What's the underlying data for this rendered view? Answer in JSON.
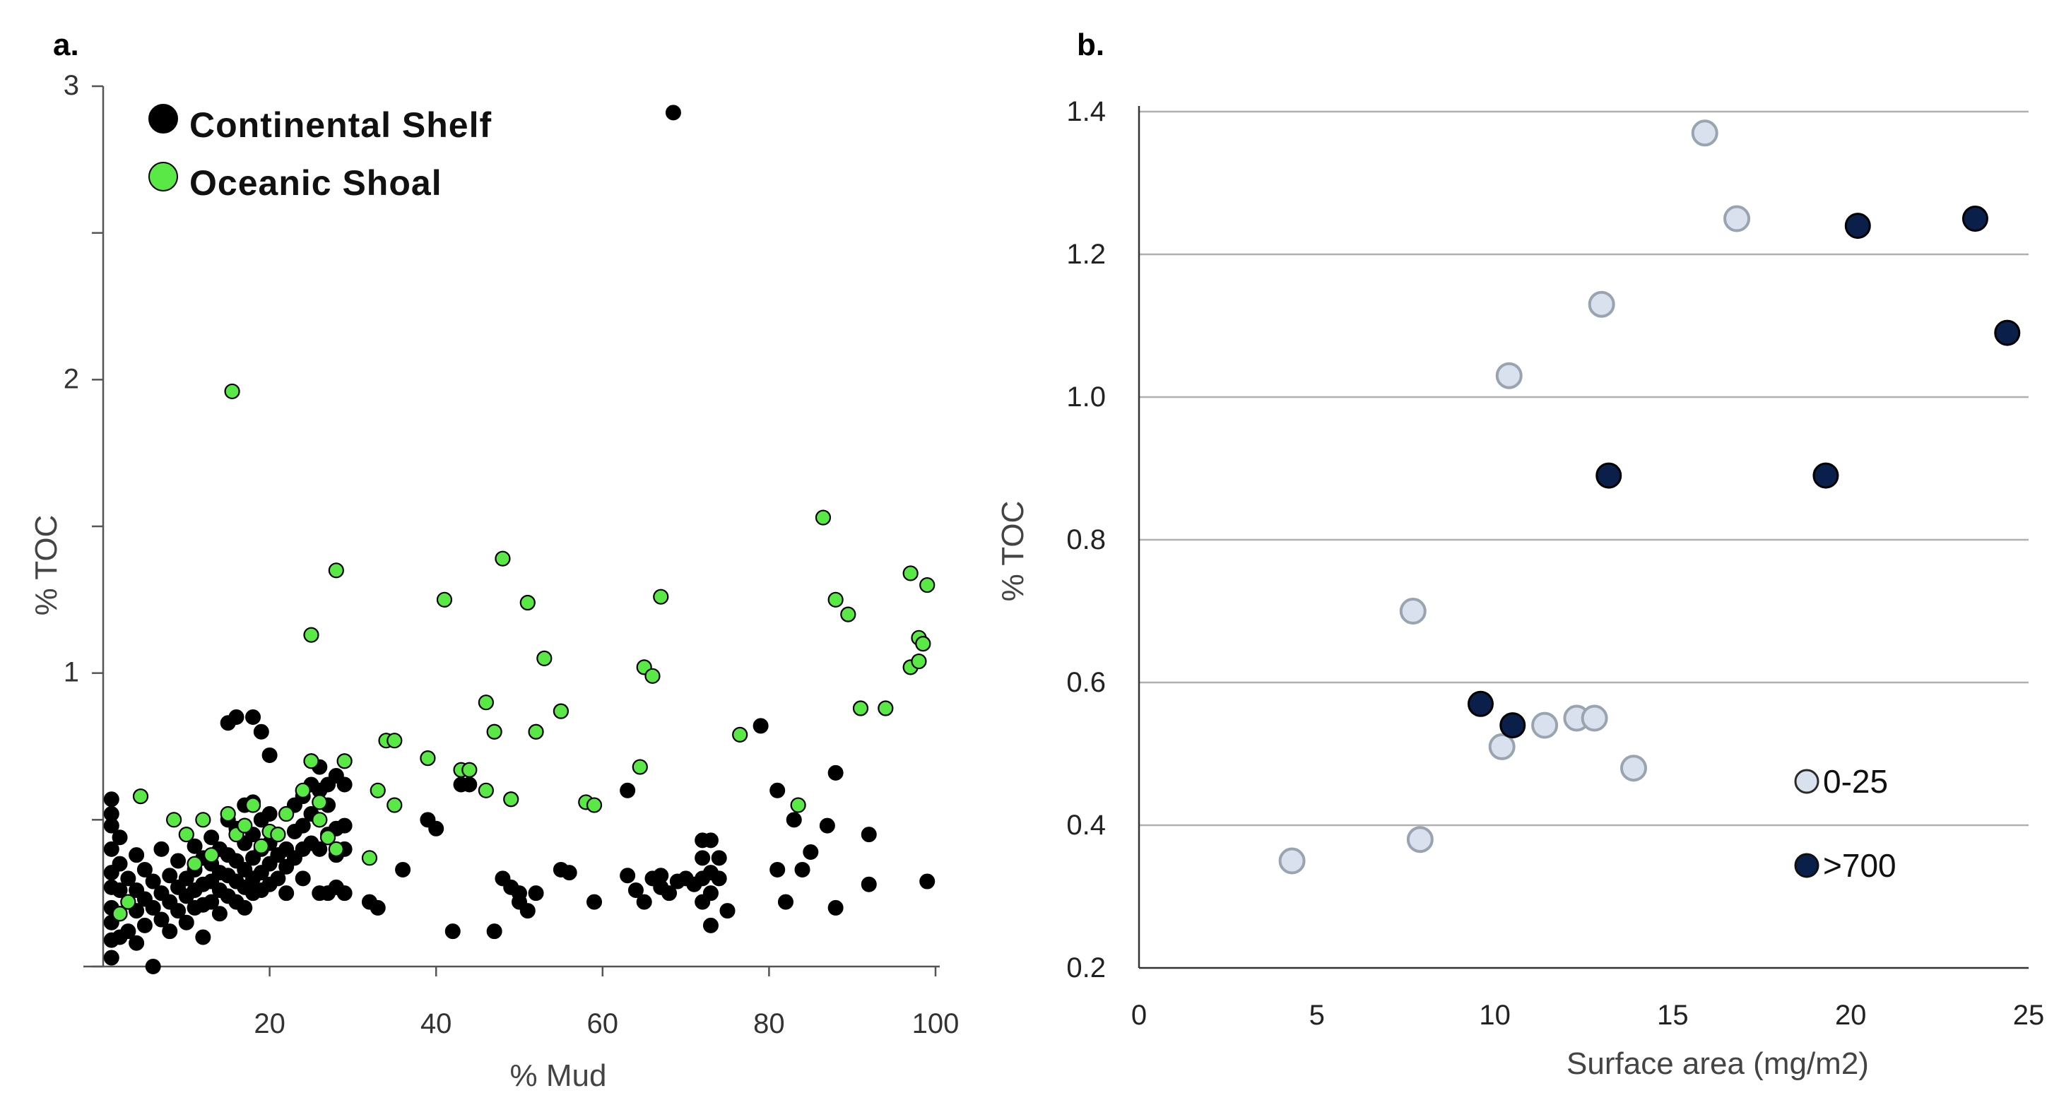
{
  "chart_data": [
    {
      "panel": "a.",
      "type": "scatter",
      "title": "",
      "xlabel": "% Mud",
      "ylabel": "% TOC",
      "xlim": [
        0,
        100
      ],
      "ylim": [
        0,
        3
      ],
      "x_ticks": [
        "20",
        "40",
        "60",
        "80",
        "100"
      ],
      "y_ticks": [
        "1",
        "2",
        "3"
      ],
      "grid": false,
      "legend_position": "top-left",
      "series": [
        {
          "name": "Continental Shelf",
          "color": "#000000",
          "points": [
            [
              68.5,
              2.91
            ],
            [
              1,
              0.57
            ],
            [
              1,
              0.52
            ],
            [
              1,
              0.48
            ],
            [
              1,
              0.4
            ],
            [
              1,
              0.32
            ],
            [
              1,
              0.27
            ],
            [
              1,
              0.2
            ],
            [
              1,
              0.15
            ],
            [
              1,
              0.09
            ],
            [
              1,
              0.03
            ],
            [
              2,
              0.44
            ],
            [
              2,
              0.35
            ],
            [
              2,
              0.26
            ],
            [
              2,
              0.18
            ],
            [
              2,
              0.1
            ],
            [
              3,
              0.3
            ],
            [
              3,
              0.22
            ],
            [
              3,
              0.12
            ],
            [
              4,
              0.38
            ],
            [
              4,
              0.26
            ],
            [
              4,
              0.19
            ],
            [
              4,
              0.08
            ],
            [
              5,
              0.33
            ],
            [
              5,
              0.23
            ],
            [
              5,
              0.14
            ],
            [
              6,
              0.29
            ],
            [
              6,
              0.2
            ],
            [
              6,
              0.0
            ],
            [
              7,
              0.4
            ],
            [
              7,
              0.25
            ],
            [
              7,
              0.16
            ],
            [
              8,
              0.31
            ],
            [
              8,
              0.22
            ],
            [
              8,
              0.12
            ],
            [
              9,
              0.36
            ],
            [
              9,
              0.27
            ],
            [
              9,
              0.19
            ],
            [
              10,
              0.3
            ],
            [
              10,
              0.24
            ],
            [
              10,
              0.15
            ],
            [
              11,
              0.41
            ],
            [
              11,
              0.33
            ],
            [
              11,
              0.26
            ],
            [
              11,
              0.2
            ],
            [
              12,
              0.37
            ],
            [
              12,
              0.28
            ],
            [
              12,
              0.21
            ],
            [
              12,
              0.1
            ],
            [
              13,
              0.44
            ],
            [
              13,
              0.35
            ],
            [
              13,
              0.29
            ],
            [
              13,
              0.22
            ],
            [
              14,
              0.4
            ],
            [
              14,
              0.32
            ],
            [
              14,
              0.26
            ],
            [
              14,
              0.18
            ],
            [
              15,
              0.83
            ],
            [
              15,
              0.5
            ],
            [
              15,
              0.38
            ],
            [
              15,
              0.31
            ],
            [
              15,
              0.24
            ],
            [
              16,
              0.85
            ],
            [
              16,
              0.47
            ],
            [
              16,
              0.36
            ],
            [
              16,
              0.29
            ],
            [
              16,
              0.22
            ],
            [
              17,
              0.55
            ],
            [
              17,
              0.42
            ],
            [
              17,
              0.33
            ],
            [
              17,
              0.27
            ],
            [
              17,
              0.2
            ],
            [
              18,
              0.85
            ],
            [
              18,
              0.56
            ],
            [
              18,
              0.45
            ],
            [
              18,
              0.37
            ],
            [
              18,
              0.3
            ],
            [
              18,
              0.25
            ],
            [
              19,
              0.8
            ],
            [
              19,
              0.5
            ],
            [
              19,
              0.4
            ],
            [
              19,
              0.32
            ],
            [
              19,
              0.26
            ],
            [
              20,
              0.72
            ],
            [
              20,
              0.52
            ],
            [
              20,
              0.42
            ],
            [
              20,
              0.35
            ],
            [
              20,
              0.28
            ],
            [
              21,
              0.45
            ],
            [
              21,
              0.38
            ],
            [
              21,
              0.3
            ],
            [
              22,
              0.4
            ],
            [
              22,
              0.34
            ],
            [
              22,
              0.25
            ],
            [
              23,
              0.55
            ],
            [
              23,
              0.46
            ],
            [
              23,
              0.37
            ],
            [
              24,
              0.58
            ],
            [
              24,
              0.48
            ],
            [
              24,
              0.4
            ],
            [
              24,
              0.3
            ],
            [
              25,
              0.7
            ],
            [
              25,
              0.62
            ],
            [
              25,
              0.52
            ],
            [
              25,
              0.42
            ],
            [
              26,
              0.68
            ],
            [
              26,
              0.6
            ],
            [
              26,
              0.5
            ],
            [
              26,
              0.4
            ],
            [
              26,
              0.25
            ],
            [
              27,
              0.62
            ],
            [
              27,
              0.55
            ],
            [
              27,
              0.45
            ],
            [
              27,
              0.25
            ],
            [
              28,
              0.65
            ],
            [
              28,
              0.47
            ],
            [
              28,
              0.38
            ],
            [
              28,
              0.27
            ],
            [
              29,
              0.62
            ],
            [
              29,
              0.48
            ],
            [
              29,
              0.4
            ],
            [
              29,
              0.25
            ],
            [
              32,
              0.22
            ],
            [
              33,
              0.2
            ],
            [
              36,
              0.33
            ],
            [
              39,
              0.5
            ],
            [
              40,
              0.47
            ],
            [
              42,
              0.12
            ],
            [
              43,
              0.62
            ],
            [
              44,
              0.62
            ],
            [
              47,
              0.12
            ],
            [
              48,
              0.3
            ],
            [
              49,
              0.27
            ],
            [
              50,
              0.25
            ],
            [
              50,
              0.22
            ],
            [
              51,
              0.19
            ],
            [
              52,
              0.25
            ],
            [
              55,
              0.33
            ],
            [
              56,
              0.32
            ],
            [
              59,
              0.22
            ],
            [
              63,
              0.31
            ],
            [
              63,
              0.6
            ],
            [
              64,
              0.26
            ],
            [
              65,
              0.22
            ],
            [
              66,
              0.3
            ],
            [
              67,
              0.31
            ],
            [
              67,
              0.27
            ],
            [
              68,
              0.25
            ],
            [
              69,
              0.29
            ],
            [
              70,
              0.3
            ],
            [
              71,
              0.28
            ],
            [
              72,
              0.22
            ],
            [
              72,
              0.3
            ],
            [
              72,
              0.43
            ],
            [
              72,
              0.37
            ],
            [
              73,
              0.25
            ],
            [
              73,
              0.43
            ],
            [
              73,
              0.32
            ],
            [
              73,
              0.14
            ],
            [
              74,
              0.37
            ],
            [
              74,
              0.3
            ],
            [
              75,
              0.19
            ],
            [
              79,
              0.82
            ],
            [
              81,
              0.6
            ],
            [
              81,
              0.33
            ],
            [
              82,
              0.22
            ],
            [
              83,
              0.5
            ],
            [
              84,
              0.33
            ],
            [
              85,
              0.39
            ],
            [
              87,
              0.48
            ],
            [
              88,
              0.66
            ],
            [
              88,
              0.2
            ],
            [
              92,
              0.45
            ],
            [
              92,
              0.28
            ],
            [
              99,
              0.29
            ]
          ]
        },
        {
          "name": "Oceanic Shoal",
          "color": "#59e845",
          "points": [
            [
              15.5,
              1.96
            ],
            [
              2,
              0.18
            ],
            [
              3,
              0.22
            ],
            [
              4.5,
              0.58
            ],
            [
              8.5,
              0.5
            ],
            [
              10,
              0.45
            ],
            [
              11,
              0.35
            ],
            [
              12,
              0.5
            ],
            [
              13,
              0.38
            ],
            [
              15,
              0.52
            ],
            [
              16,
              0.45
            ],
            [
              17,
              0.48
            ],
            [
              18,
              0.55
            ],
            [
              19,
              0.41
            ],
            [
              20,
              0.46
            ],
            [
              21,
              0.45
            ],
            [
              22,
              0.52
            ],
            [
              24,
              0.6
            ],
            [
              25,
              1.13
            ],
            [
              25,
              0.7
            ],
            [
              26,
              0.56
            ],
            [
              26,
              0.5
            ],
            [
              27,
              0.44
            ],
            [
              28,
              0.4
            ],
            [
              28,
              1.35
            ],
            [
              29,
              0.7
            ],
            [
              32,
              0.37
            ],
            [
              33,
              0.6
            ],
            [
              34,
              0.77
            ],
            [
              35,
              0.77
            ],
            [
              35,
              0.55
            ],
            [
              39,
              0.71
            ],
            [
              41,
              1.25
            ],
            [
              43,
              0.67
            ],
            [
              44,
              0.67
            ],
            [
              46,
              0.6
            ],
            [
              46,
              0.9
            ],
            [
              47,
              0.8
            ],
            [
              48,
              1.39
            ],
            [
              49,
              0.57
            ],
            [
              51,
              1.24
            ],
            [
              52,
              0.8
            ],
            [
              53,
              1.05
            ],
            [
              55,
              0.87
            ],
            [
              58,
              0.56
            ],
            [
              59,
              0.55
            ],
            [
              64.5,
              0.68
            ],
            [
              65,
              1.02
            ],
            [
              66,
              0.99
            ],
            [
              67,
              1.26
            ],
            [
              76.5,
              0.79
            ],
            [
              83.5,
              0.55
            ],
            [
              86.5,
              1.53
            ],
            [
              88,
              1.25
            ],
            [
              89.5,
              1.2
            ],
            [
              91,
              0.88
            ],
            [
              94,
              0.88
            ],
            [
              97,
              1.34
            ],
            [
              97,
              1.02
            ],
            [
              98,
              1.04
            ],
            [
              98,
              1.12
            ],
            [
              98.5,
              1.1
            ],
            [
              99,
              1.3
            ]
          ]
        }
      ]
    },
    {
      "panel": "b.",
      "type": "scatter",
      "title": "",
      "xlabel": "Surface area (mg/m2)",
      "ylabel": "% TOC",
      "xlim": [
        0,
        25
      ],
      "ylim": [
        0.2,
        1.4
      ],
      "x_ticks": [
        "0",
        "5",
        "10",
        "15",
        "20",
        "25"
      ],
      "y_ticks": [
        "0.2",
        "0.4",
        "0.6",
        "0.8",
        "1.0",
        "1.2",
        "1.4"
      ],
      "grid": true,
      "legend_position": "bottom-right",
      "series": [
        {
          "name": "0-25",
          "color": "#d9e1ef",
          "points": [
            [
              4.3,
              0.35
            ],
            [
              7.7,
              0.7
            ],
            [
              7.9,
              0.38
            ],
            [
              10.2,
              0.51
            ],
            [
              10.4,
              1.03
            ],
            [
              11.4,
              0.54
            ],
            [
              12.3,
              0.55
            ],
            [
              12.8,
              0.55
            ],
            [
              13.0,
              1.13
            ],
            [
              13.9,
              0.48
            ],
            [
              15.9,
              1.37
            ],
            [
              16.8,
              1.25
            ]
          ]
        },
        {
          "name": ">700",
          "color": "#0a1f4a",
          "points": [
            [
              9.6,
              0.57
            ],
            [
              10.5,
              0.54
            ],
            [
              13.2,
              0.89
            ],
            [
              19.3,
              0.89
            ],
            [
              20.2,
              1.24
            ],
            [
              23.5,
              1.25
            ],
            [
              24.4,
              1.09
            ]
          ]
        }
      ]
    }
  ]
}
